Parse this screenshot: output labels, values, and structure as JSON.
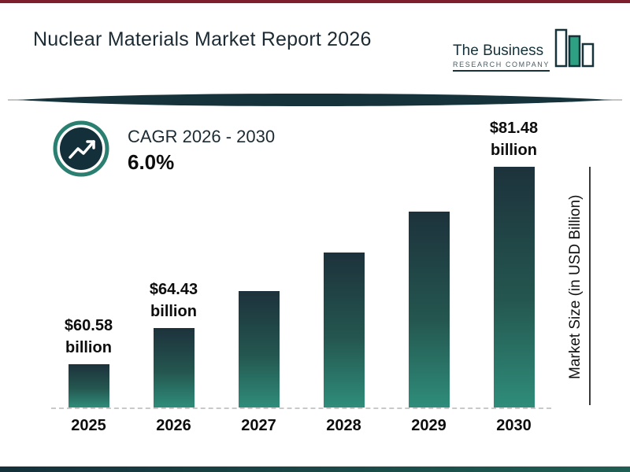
{
  "title": "Nuclear Materials Market Report 2026",
  "logo": {
    "line1": "The Business",
    "line2": "RESEARCH COMPANY"
  },
  "cagr": {
    "label": "CAGR 2026 - 2030",
    "value": "6.0%"
  },
  "axis": {
    "y_title": "Market Size (in USD Billion)"
  },
  "colors": {
    "bar_top": "#1d323c",
    "bar_bottom": "#2f8d7a",
    "accent_teal": "#2a7f70",
    "logo_green": "#2fa183",
    "dark_navy": "#16323a",
    "top_strip_red": "#7e1f2e"
  },
  "chart": {
    "bars": [
      {
        "year": "2025",
        "value": 60.58,
        "label_value": "$60.58",
        "label_unit": "billion"
      },
      {
        "year": "2026",
        "value": 64.43,
        "label_value": "$64.43",
        "label_unit": "billion"
      },
      {
        "year": "2027",
        "value": 68.3
      },
      {
        "year": "2028",
        "value": 72.39
      },
      {
        "year": "2029",
        "value": 76.74
      },
      {
        "year": "2030",
        "value": 81.48,
        "label_value": "$81.48",
        "label_unit": "billion"
      }
    ]
  },
  "chart_data": {
    "type": "bar",
    "title": "Nuclear Materials Market Report 2026",
    "categories": [
      "2025",
      "2026",
      "2027",
      "2028",
      "2029",
      "2030"
    ],
    "values": [
      60.58,
      64.43,
      68.3,
      72.39,
      76.74,
      81.48
    ],
    "value_labels": [
      "$60.58 billion",
      "$64.43 billion",
      null,
      null,
      null,
      "$81.48 billion"
    ],
    "xlabel": "",
    "ylabel": "Market Size (in USD Billion)",
    "annotations": [
      "CAGR 2026 - 2030: 6.0%"
    ],
    "estimated_points": [
      "2027",
      "2028",
      "2029"
    ],
    "grid": false,
    "legend": false
  }
}
